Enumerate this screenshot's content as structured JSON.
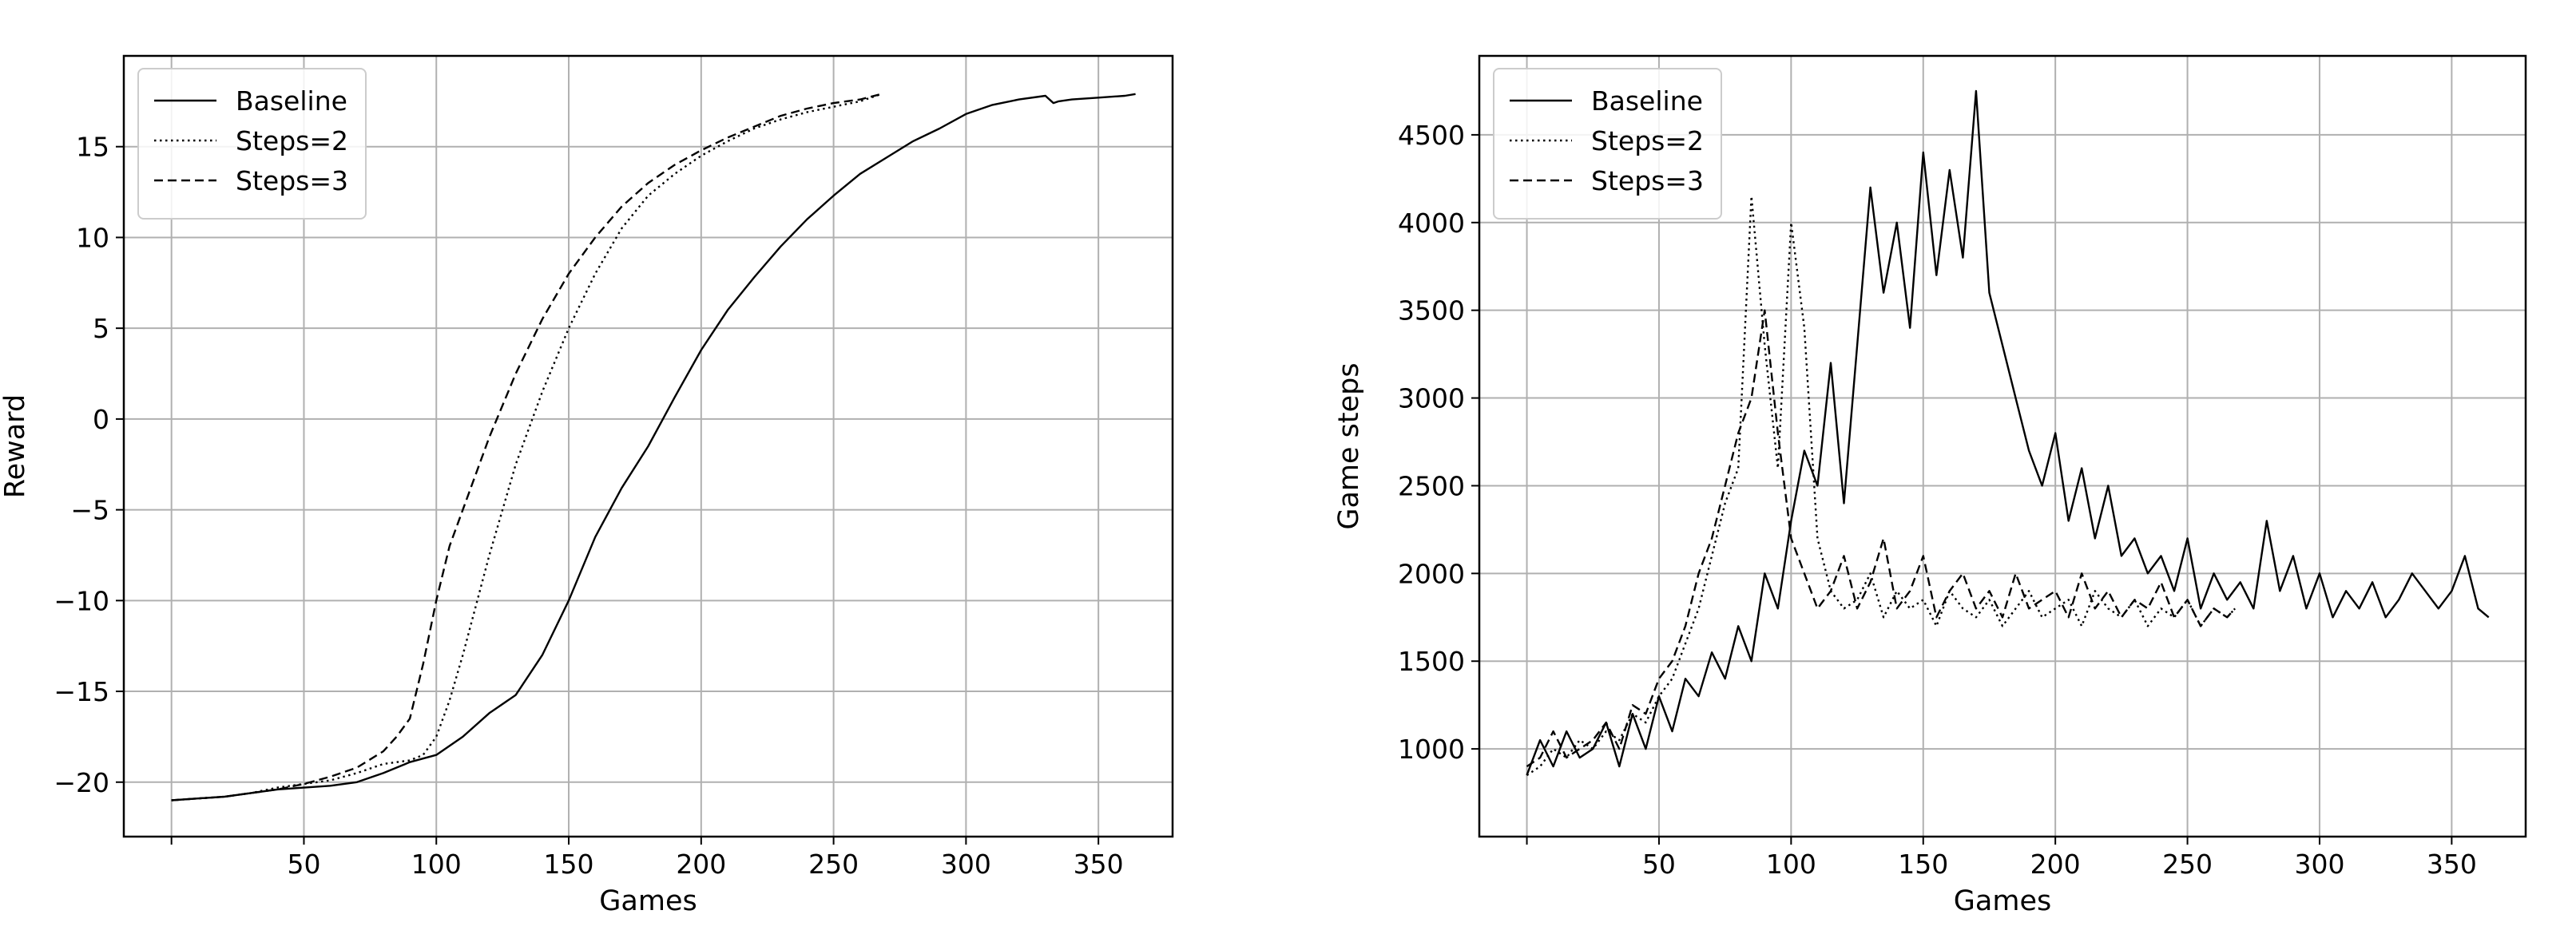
{
  "chart_data": [
    {
      "type": "line",
      "title": "",
      "xlabel": "Games",
      "ylabel": "Reward",
      "xlim": [
        -18,
        378
      ],
      "ylim": [
        -23,
        20
      ],
      "xticks": [
        50,
        100,
        150,
        200,
        250,
        300,
        350
      ],
      "yticks": [
        -20,
        -15,
        -10,
        -5,
        0,
        5,
        10,
        15
      ],
      "ytick_labels": [
        "−20",
        "−15",
        "−10",
        "−5",
        "0",
        "5",
        "10",
        "15"
      ],
      "grid": true,
      "legend_position": "top-left",
      "series": [
        {
          "name": "Baseline",
          "style": "solid",
          "x": [
            0,
            10,
            20,
            30,
            40,
            50,
            60,
            70,
            80,
            90,
            100,
            110,
            120,
            130,
            140,
            150,
            160,
            170,
            180,
            190,
            200,
            210,
            220,
            230,
            240,
            250,
            260,
            270,
            280,
            290,
            300,
            310,
            320,
            330,
            333,
            335,
            340,
            350,
            360,
            364
          ],
          "y": [
            -21,
            -20.9,
            -20.8,
            -20.6,
            -20.4,
            -20.3,
            -20.2,
            -20,
            -19.5,
            -18.9,
            -18.5,
            -17.5,
            -16.2,
            -15.2,
            -13,
            -10,
            -6.5,
            -3.8,
            -1.5,
            1.2,
            3.8,
            6,
            7.8,
            9.5,
            11,
            12.3,
            13.5,
            14.4,
            15.3,
            16,
            16.8,
            17.3,
            17.6,
            17.8,
            17.4,
            17.5,
            17.6,
            17.7,
            17.8,
            17.9
          ]
        },
        {
          "name": "Steps=2",
          "style": "dotted",
          "x": [
            0,
            10,
            20,
            30,
            40,
            50,
            60,
            70,
            80,
            90,
            95,
            100,
            105,
            110,
            120,
            130,
            140,
            150,
            160,
            170,
            180,
            190,
            200,
            210,
            220,
            230,
            240,
            250,
            260,
            268
          ],
          "y": [
            -21,
            -20.9,
            -20.8,
            -20.6,
            -20.3,
            -20.1,
            -19.9,
            -19.5,
            -19,
            -18.8,
            -18.5,
            -17.5,
            -15.5,
            -13,
            -7.5,
            -2.5,
            1.5,
            5,
            8,
            10.5,
            12.3,
            13.5,
            14.5,
            15.3,
            16,
            16.5,
            16.9,
            17.2,
            17.5,
            17.9
          ]
        },
        {
          "name": "Steps=3",
          "style": "dashed",
          "x": [
            0,
            10,
            20,
            30,
            40,
            50,
            60,
            70,
            80,
            85,
            90,
            95,
            100,
            105,
            110,
            120,
            130,
            140,
            150,
            160,
            170,
            180,
            190,
            200,
            210,
            220,
            230,
            240,
            250,
            260,
            268
          ],
          "y": [
            -21,
            -20.9,
            -20.8,
            -20.6,
            -20.4,
            -20.1,
            -19.7,
            -19.2,
            -18.3,
            -17.5,
            -16.5,
            -13.5,
            -10,
            -7,
            -5,
            -1,
            2.5,
            5.5,
            8,
            10,
            11.7,
            13,
            14,
            14.8,
            15.5,
            16.1,
            16.7,
            17.1,
            17.4,
            17.6,
            17.9
          ]
        }
      ]
    },
    {
      "type": "line",
      "title": "",
      "xlabel": "Games",
      "ylabel": "Game steps",
      "xlim": [
        -18,
        378
      ],
      "ylim": [
        500,
        4950
      ],
      "xticks": [
        50,
        100,
        150,
        200,
        250,
        300,
        350
      ],
      "yticks": [
        1000,
        1500,
        2000,
        2500,
        3000,
        3500,
        4000,
        4500
      ],
      "ytick_labels": [
        "1000",
        "1500",
        "2000",
        "2500",
        "3000",
        "3500",
        "4000",
        "4500"
      ],
      "grid": true,
      "legend_position": "top-left",
      "series": [
        {
          "name": "Baseline",
          "style": "solid",
          "x": [
            0,
            5,
            10,
            15,
            20,
            25,
            30,
            35,
            40,
            45,
            50,
            55,
            60,
            65,
            70,
            75,
            80,
            85,
            90,
            95,
            100,
            105,
            110,
            115,
            120,
            125,
            130,
            135,
            140,
            145,
            150,
            155,
            160,
            165,
            170,
            175,
            180,
            185,
            190,
            195,
            200,
            205,
            210,
            215,
            220,
            225,
            230,
            235,
            240,
            245,
            250,
            255,
            260,
            265,
            270,
            275,
            280,
            285,
            290,
            295,
            300,
            305,
            310,
            315,
            320,
            325,
            330,
            335,
            340,
            345,
            350,
            355,
            360,
            364
          ],
          "y": [
            850,
            1050,
            900,
            1100,
            950,
            1000,
            1150,
            900,
            1200,
            1000,
            1300,
            1100,
            1400,
            1300,
            1550,
            1400,
            1700,
            1500,
            2000,
            1800,
            2300,
            2700,
            2500,
            3200,
            2400,
            3300,
            4200,
            3600,
            4000,
            3400,
            4400,
            3700,
            4300,
            3800,
            4750,
            3600,
            3300,
            3000,
            2700,
            2500,
            2800,
            2300,
            2600,
            2200,
            2500,
            2100,
            2200,
            2000,
            2100,
            1900,
            2200,
            1800,
            2000,
            1850,
            1950,
            1800,
            2300,
            1900,
            2100,
            1800,
            2000,
            1750,
            1900,
            1800,
            1950,
            1750,
            1850,
            2000,
            1900,
            1800,
            1900,
            2100,
            1800,
            1750
          ]
        },
        {
          "name": "Steps=2",
          "style": "dotted",
          "x": [
            0,
            5,
            10,
            15,
            20,
            25,
            30,
            35,
            40,
            45,
            50,
            55,
            60,
            65,
            70,
            75,
            80,
            85,
            90,
            95,
            100,
            105,
            110,
            115,
            120,
            125,
            130,
            135,
            140,
            145,
            150,
            155,
            160,
            165,
            170,
            175,
            180,
            185,
            190,
            195,
            200,
            205,
            210,
            215,
            220,
            225,
            230,
            235,
            240,
            245,
            250,
            255,
            260,
            265,
            268
          ],
          "y": [
            850,
            900,
            1000,
            950,
            1050,
            1000,
            1100,
            1050,
            1200,
            1150,
            1300,
            1400,
            1600,
            1800,
            2100,
            2400,
            2600,
            4150,
            3300,
            2600,
            4000,
            3400,
            2200,
            1900,
            1800,
            1850,
            2000,
            1750,
            1900,
            1800,
            1850,
            1700,
            1900,
            1800,
            1750,
            1850,
            1700,
            1800,
            1900,
            1750,
            1800,
            1850,
            1700,
            1900,
            1800,
            1750,
            1850,
            1700,
            1800,
            1750,
            1850,
            1700,
            1800,
            1750,
            1800
          ]
        },
        {
          "name": "Steps=3",
          "style": "dashed",
          "x": [
            0,
            5,
            10,
            15,
            20,
            25,
            30,
            35,
            40,
            45,
            50,
            55,
            60,
            65,
            70,
            75,
            80,
            85,
            90,
            95,
            100,
            105,
            110,
            115,
            120,
            125,
            130,
            135,
            140,
            145,
            150,
            155,
            160,
            165,
            170,
            175,
            180,
            185,
            190,
            195,
            200,
            205,
            210,
            215,
            220,
            225,
            230,
            235,
            240,
            245,
            250,
            255,
            260,
            265,
            268
          ],
          "y": [
            900,
            950,
            1100,
            950,
            1000,
            1050,
            1150,
            1000,
            1250,
            1200,
            1400,
            1500,
            1700,
            2000,
            2200,
            2500,
            2800,
            3000,
            3500,
            2800,
            2200,
            2000,
            1800,
            1900,
            2100,
            1800,
            1950,
            2200,
            1800,
            1900,
            2100,
            1750,
            1900,
            2000,
            1800,
            1900,
            1750,
            2000,
            1800,
            1850,
            1900,
            1750,
            2000,
            1800,
            1900,
            1750,
            1850,
            1800,
            1950,
            1750,
            1850,
            1700,
            1800,
            1750,
            1800
          ]
        }
      ]
    }
  ]
}
